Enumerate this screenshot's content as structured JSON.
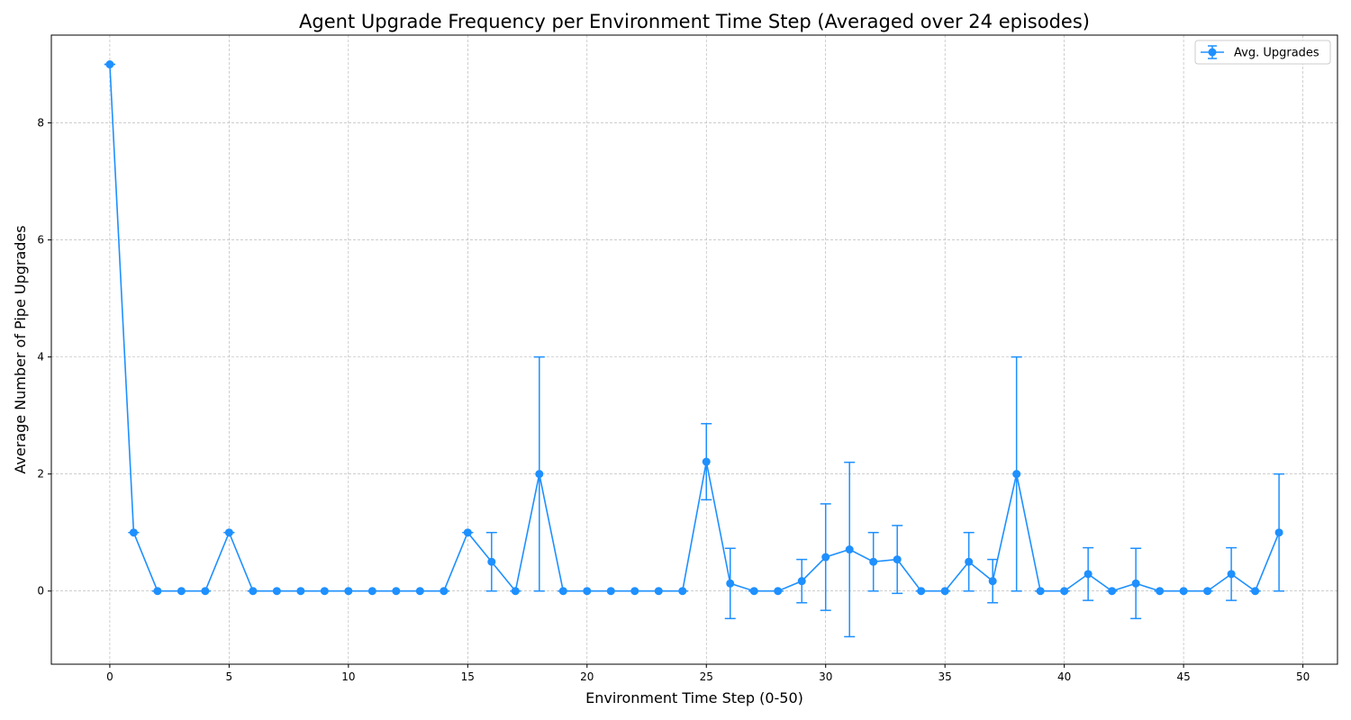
{
  "chart_data": {
    "type": "line",
    "title": "Agent Upgrade Frequency per Environment Time Step (Averaged over 24 episodes)",
    "xlabel": "Environment Time Step (0-50)",
    "ylabel": "Average Number of Pipe Upgrades",
    "xlim": [
      -2.45,
      51.45
    ],
    "ylim": [
      -1.25,
      9.5
    ],
    "xticks": [
      0,
      5,
      10,
      15,
      20,
      25,
      30,
      35,
      40,
      45,
      50
    ],
    "yticks": [
      0,
      2,
      4,
      6,
      8
    ],
    "grid": true,
    "legend_position": "top-right",
    "color": "#1e90ff",
    "series": [
      {
        "name": "Avg. Upgrades",
        "x": [
          0,
          1,
          2,
          3,
          4,
          5,
          6,
          7,
          8,
          9,
          10,
          11,
          12,
          13,
          14,
          15,
          16,
          17,
          18,
          19,
          20,
          21,
          22,
          23,
          24,
          25,
          26,
          27,
          28,
          29,
          30,
          31,
          32,
          33,
          34,
          35,
          36,
          37,
          38,
          39,
          40,
          41,
          42,
          43,
          44,
          45,
          46,
          47,
          48,
          49
        ],
        "y": [
          9,
          1,
          0,
          0,
          0,
          1,
          0,
          0,
          0,
          0,
          0,
          0,
          0,
          0,
          0,
          1,
          0.5,
          0,
          2,
          0,
          0,
          0,
          0,
          0,
          0,
          2.21,
          0.13,
          0,
          0,
          0.17,
          0.58,
          0.71,
          0.5,
          0.54,
          0,
          0,
          0.5,
          0.17,
          2,
          0,
          0,
          0.29,
          0,
          0.13,
          0,
          0,
          0,
          0.29,
          0,
          1
        ],
        "err": [
          0,
          0,
          0,
          0,
          0,
          0,
          0,
          0,
          0,
          0,
          0,
          0,
          0,
          0,
          0,
          0,
          0.5,
          0,
          2,
          0,
          0,
          0,
          0,
          0,
          0,
          0.65,
          0.6,
          0,
          0,
          0.37,
          0.91,
          1.49,
          0.5,
          0.58,
          0,
          0,
          0.5,
          0.37,
          2,
          0,
          0,
          0.45,
          0,
          0.6,
          0,
          0,
          0,
          0.45,
          0,
          1
        ]
      }
    ]
  }
}
